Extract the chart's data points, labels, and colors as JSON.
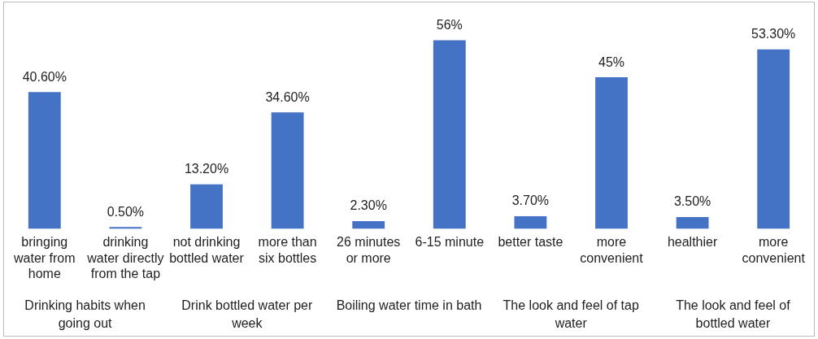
{
  "chart_data": {
    "type": "bar",
    "categories": [
      "bringing water from home",
      "drinking water directly from the tap",
      "not drinking bottled water",
      "more than six bottles",
      "26 minutes or more",
      "6-15 minute",
      "better taste",
      "more convenient",
      "healthier",
      "more convenient"
    ],
    "values": [
      40.6,
      0.5,
      13.2,
      34.6,
      2.3,
      56,
      3.7,
      45,
      3.5,
      53.3
    ],
    "value_labels": [
      "40.60%",
      "0.50%",
      "13.20%",
      "34.60%",
      "2.30%",
      "56%",
      "3.70%",
      "45%",
      "3.50%",
      "53.30%"
    ],
    "color": "#4472c4",
    "annotations": [
      "Drinking habits when going out",
      "Drink bottled water per week",
      "Boiling water time in bath",
      "The look and feel of tap water",
      "The look and feel of bottled water"
    ],
    "grid": false,
    "legend": false
  }
}
